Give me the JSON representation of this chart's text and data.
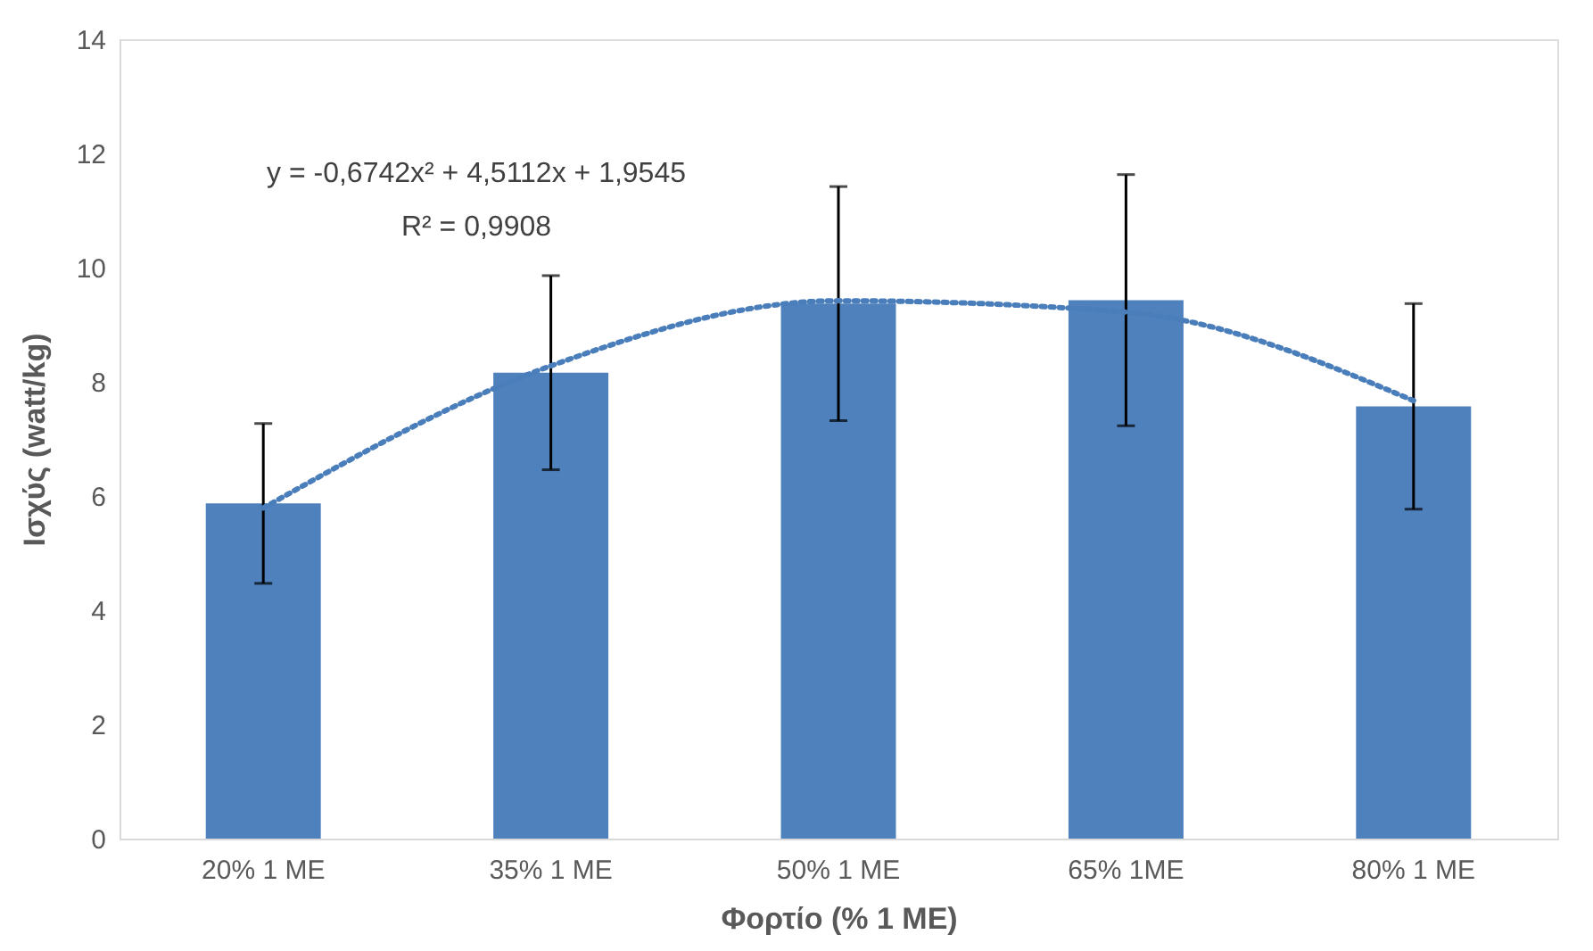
{
  "chart_data": {
    "type": "bar",
    "xlabel": "Φορτίο (% 1 ΜΕ)",
    "ylabel": "Ισχύς (watt/kg)",
    "categories": [
      "20% 1 ΜΕ",
      "35% 1 ΜΕ",
      "50% 1 ΜΕ",
      "65% 1ΜΕ",
      "80% 1 ΜΕ"
    ],
    "series": [
      {
        "color": "#4f81bd",
        "values": [
          5.87,
          8.16,
          9.37,
          9.43,
          7.57
        ],
        "errors": [
          1.4,
          1.7,
          2.05,
          2.2,
          1.8
        ]
      },
      {
        "type": "line",
        "color": "#4a7ebb",
        "line_style": "dotted",
        "x": [
          "20% 1 ΜΕ",
          "35% 1 ΜΕ",
          "50% 1 ΜΕ",
          "65% 1ΜΕ",
          "80% 1 ΜΕ"
        ],
        "values": [
          5.79,
          8.28,
          9.42,
          9.22,
          7.67
        ]
      }
    ],
    "annotations": [
      "y = -0,6742x² + 4,5112x + 1,9545",
      "R² = 0,9908"
    ],
    "ylim": [
      0,
      14
    ],
    "yticks": [
      0,
      2,
      4,
      6,
      8,
      10,
      12,
      14
    ],
    "grid": false
  }
}
